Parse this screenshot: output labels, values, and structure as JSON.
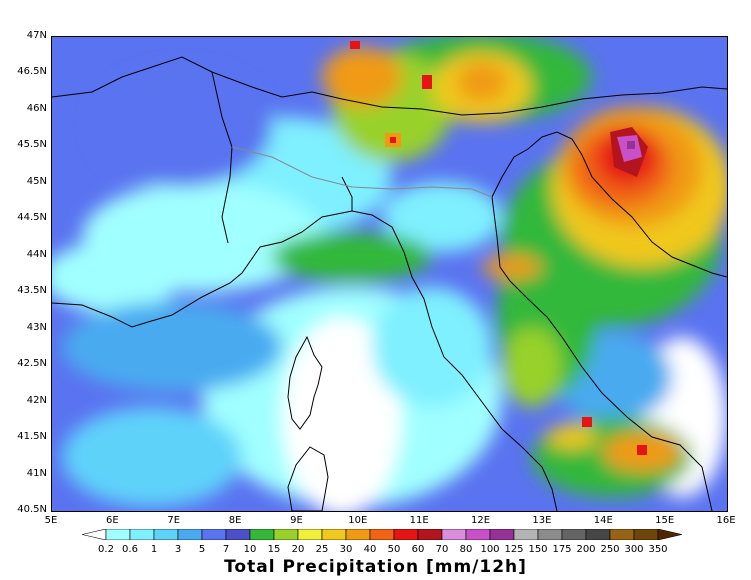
{
  "map": {
    "lat_ticks": [
      "47N",
      "46.5N",
      "46N",
      "45.5N",
      "45N",
      "44.5N",
      "44N",
      "43.5N",
      "43N",
      "42.5N",
      "42N",
      "41.5N",
      "41N",
      "40.5N"
    ],
    "lon_ticks": [
      "5E",
      "6E",
      "7E",
      "8E",
      "9E",
      "10E",
      "11E",
      "12E",
      "13E",
      "14E",
      "15E",
      "16E"
    ],
    "extent": {
      "lon": [
        5,
        16
      ],
      "lat": [
        40.5,
        47
      ]
    }
  },
  "legend": {
    "title": "Total Precipitation [mm/12h]",
    "levels": [
      "0.2",
      "0.6",
      "1",
      "3",
      "5",
      "7",
      "10",
      "15",
      "20",
      "25",
      "30",
      "40",
      "50",
      "60",
      "70",
      "80",
      "100",
      "125",
      "150",
      "175",
      "200",
      "250",
      "300",
      "350"
    ],
    "colors": [
      "#ffffff",
      "#a0ffff",
      "#7ff0ff",
      "#5fd2fa",
      "#4aaaf0",
      "#5a73f0",
      "#4b50c8",
      "#33b83a",
      "#98d12c",
      "#f0f03a",
      "#f0c81e",
      "#f09a14",
      "#f06414",
      "#e61414",
      "#b4141e",
      "#dc8cdc",
      "#c850c8",
      "#963296",
      "#b4b4b4",
      "#8c8c8c",
      "#646464",
      "#464646",
      "#966414",
      "#6e460a",
      "#502800"
    ]
  }
}
